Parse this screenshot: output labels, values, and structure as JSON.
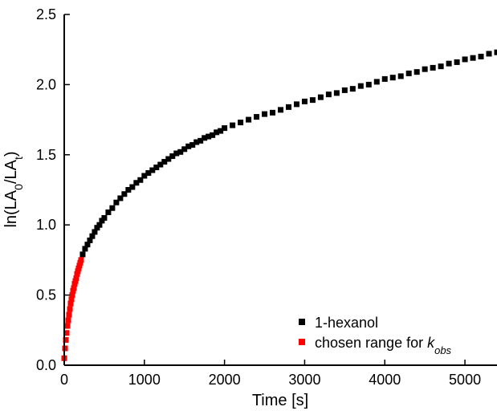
{
  "chart_data": {
    "type": "scatter",
    "xlabel": "Time [s]",
    "ylabel": {
      "main": "ln(LA",
      "sub0": "0",
      "mid": "/LA",
      "subt": "t",
      "end": ")"
    },
    "xlim": [
      0,
      5400
    ],
    "ylim": [
      0,
      2.5
    ],
    "xticks": [
      0,
      1000,
      2000,
      3000,
      4000,
      5000
    ],
    "yticks": [
      0.0,
      0.5,
      1.0,
      1.5,
      2.0,
      2.5
    ],
    "xtick_labels": [
      "0",
      "1000",
      "2000",
      "3000",
      "4000",
      "5000"
    ],
    "ytick_labels": [
      "0.0",
      "0.5",
      "1.0",
      "1.5",
      "2.0",
      "2.5"
    ],
    "grid": false,
    "legend_position": "bottom-right",
    "series": [
      {
        "name": "1-hexanol",
        "color": "#000000",
        "marker": "square",
        "points": [
          [
            230,
            0.79
          ],
          [
            260,
            0.83
          ],
          [
            290,
            0.86
          ],
          [
            320,
            0.89
          ],
          [
            350,
            0.92
          ],
          [
            380,
            0.95
          ],
          [
            410,
            0.98
          ],
          [
            440,
            1.0
          ],
          [
            470,
            1.03
          ],
          [
            500,
            1.05
          ],
          [
            550,
            1.09
          ],
          [
            600,
            1.12
          ],
          [
            650,
            1.16
          ],
          [
            700,
            1.19
          ],
          [
            750,
            1.22
          ],
          [
            800,
            1.25
          ],
          [
            850,
            1.27
          ],
          [
            900,
            1.3
          ],
          [
            950,
            1.32
          ],
          [
            1000,
            1.35
          ],
          [
            1050,
            1.37
          ],
          [
            1100,
            1.39
          ],
          [
            1150,
            1.41
          ],
          [
            1200,
            1.43
          ],
          [
            1250,
            1.45
          ],
          [
            1300,
            1.47
          ],
          [
            1350,
            1.49
          ],
          [
            1400,
            1.51
          ],
          [
            1450,
            1.52
          ],
          [
            1500,
            1.54
          ],
          [
            1550,
            1.56
          ],
          [
            1600,
            1.57
          ],
          [
            1650,
            1.59
          ],
          [
            1700,
            1.6
          ],
          [
            1750,
            1.62
          ],
          [
            1800,
            1.63
          ],
          [
            1850,
            1.64
          ],
          [
            1900,
            1.66
          ],
          [
            1950,
            1.67
          ],
          [
            2000,
            1.69
          ],
          [
            2100,
            1.71
          ],
          [
            2200,
            1.73
          ],
          [
            2300,
            1.75
          ],
          [
            2400,
            1.77
          ],
          [
            2500,
            1.79
          ],
          [
            2600,
            1.8
          ],
          [
            2700,
            1.82
          ],
          [
            2800,
            1.84
          ],
          [
            2900,
            1.86
          ],
          [
            3000,
            1.88
          ],
          [
            3100,
            1.89
          ],
          [
            3200,
            1.91
          ],
          [
            3300,
            1.93
          ],
          [
            3400,
            1.94
          ],
          [
            3500,
            1.96
          ],
          [
            3600,
            1.97
          ],
          [
            3700,
            1.99
          ],
          [
            3800,
            2.0
          ],
          [
            3900,
            2.02
          ],
          [
            4000,
            2.04
          ],
          [
            4100,
            2.05
          ],
          [
            4200,
            2.06
          ],
          [
            4300,
            2.08
          ],
          [
            4400,
            2.09
          ],
          [
            4500,
            2.11
          ],
          [
            4600,
            2.12
          ],
          [
            4700,
            2.13
          ],
          [
            4800,
            2.15
          ],
          [
            4900,
            2.16
          ],
          [
            5000,
            2.18
          ],
          [
            5100,
            2.19
          ],
          [
            5200,
            2.2
          ],
          [
            5300,
            2.22
          ],
          [
            5400,
            2.23
          ]
        ]
      },
      {
        "name": "chosen range for k_obs",
        "color": "#ff0000",
        "marker": "square",
        "points": [
          [
            0,
            0.05
          ],
          [
            10,
            0.12
          ],
          [
            20,
            0.18
          ],
          [
            30,
            0.23
          ],
          [
            40,
            0.28
          ],
          [
            50,
            0.32
          ],
          [
            60,
            0.36
          ],
          [
            70,
            0.4
          ],
          [
            80,
            0.44
          ],
          [
            90,
            0.47
          ],
          [
            100,
            0.5
          ],
          [
            110,
            0.53
          ],
          [
            120,
            0.55
          ],
          [
            130,
            0.58
          ],
          [
            140,
            0.6
          ],
          [
            150,
            0.62
          ],
          [
            160,
            0.65
          ],
          [
            170,
            0.67
          ],
          [
            180,
            0.69
          ],
          [
            190,
            0.71
          ],
          [
            200,
            0.73
          ],
          [
            210,
            0.75
          ]
        ]
      }
    ],
    "legend": [
      {
        "label": "1-hexanol",
        "color": "#000000"
      },
      {
        "label": "chosen range for ",
        "label_italic": "k",
        "label_sub": "obs",
        "color": "#ff0000"
      }
    ]
  }
}
